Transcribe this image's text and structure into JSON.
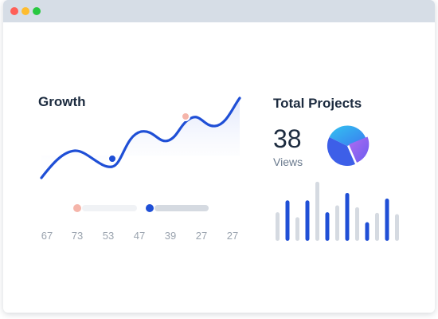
{
  "colors": {
    "accent": "#1f4fd6",
    "muted_bar": "#d5dae1",
    "highlight_dot": "#f5b5aa"
  },
  "growth": {
    "title": "Growth",
    "tick_labels": [
      "67",
      "73",
      "53",
      "47",
      "39",
      "27",
      "27"
    ]
  },
  "projects": {
    "title": "Total Projects",
    "count": "38",
    "count_label": "Views",
    "pie_icon": "pie-chart-icon"
  },
  "chart_data": [
    {
      "type": "line",
      "title": "Growth",
      "x": [
        "67",
        "73",
        "53",
        "47",
        "39",
        "27",
        "27"
      ],
      "grid": false
    },
    {
      "type": "bar",
      "series_colors": [
        "#d5dae1",
        "#1f4fd6"
      ],
      "values": [
        0.46,
        0.65,
        0.38,
        0.65,
        0.95,
        0.46,
        0.57,
        0.77,
        0.54,
        0.3,
        0.45,
        0.68,
        0.43
      ],
      "highlighted": [
        false,
        true,
        false,
        true,
        false,
        true,
        false,
        true,
        false,
        true,
        false,
        true,
        false
      ],
      "grid": false
    }
  ]
}
